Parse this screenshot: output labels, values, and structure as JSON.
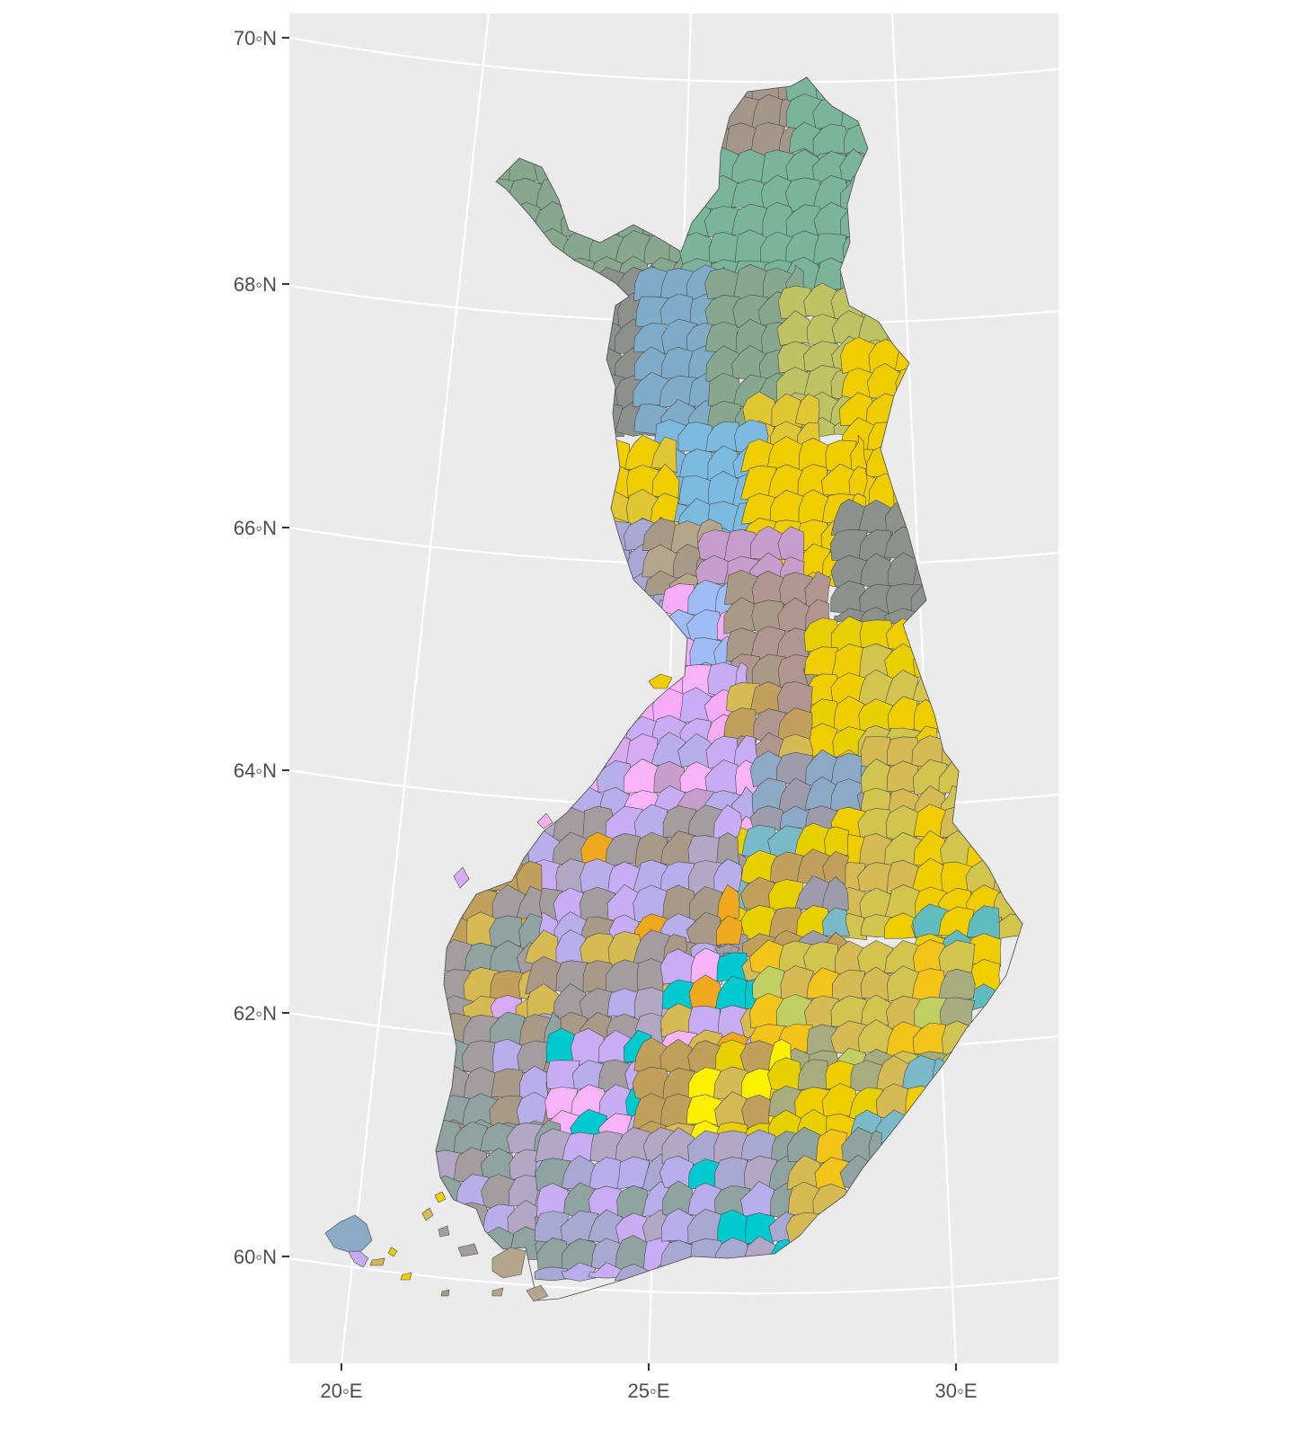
{
  "map": {
    "type": "choropleth",
    "subject": "",
    "panel_background": "#ebebeb",
    "graticule_color": "#ffffff",
    "border_color": "#4a4a4a",
    "latitude_ticks": [
      {
        "value": 70,
        "label": "70◦N"
      },
      {
        "value": 68,
        "label": "68◦N"
      },
      {
        "value": 66,
        "label": "66◦N"
      },
      {
        "value": 64,
        "label": "64◦N"
      },
      {
        "value": 62,
        "label": "62◦N"
      },
      {
        "value": 60,
        "label": "60◦N"
      }
    ],
    "longitude_ticks": [
      {
        "value": 20,
        "label": "20◦E"
      },
      {
        "value": 25,
        "label": "25◦E"
      },
      {
        "value": 30,
        "label": "30◦E"
      }
    ],
    "legend": "none",
    "palette": [
      "#a3978a",
      "#7ab49a",
      "#87a88f",
      "#7fadc9",
      "#8c918e",
      "#c0c364",
      "#f0cd00",
      "#e2c735",
      "#7cbae0",
      "#a9a8d2",
      "#a89a86",
      "#c79ecb",
      "#b6a58d",
      "#f7acf7",
      "#9fbcf7",
      "#f0a91e",
      "#b09590",
      "#d1c44f",
      "#e8d000",
      "#f9b3f9",
      "#c8adf5",
      "#8caac5",
      "#9e9cab",
      "#d6bb55",
      "#c0a05b",
      "#f3c51b",
      "#7ab9c7",
      "#61bcbf",
      "#d7acf5",
      "#b8aeeb",
      "#00c9cf",
      "#fff000",
      "#8fa3a0",
      "#b3a7c6",
      "#a7ad7e",
      "#a49da0",
      "#c0d062",
      "#d5b55c"
    ]
  }
}
